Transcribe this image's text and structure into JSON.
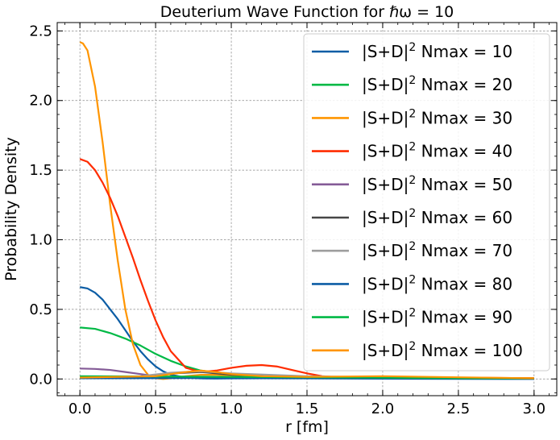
{
  "chart_data": {
    "type": "line",
    "title": "Deuterium Wave Function for ℏω = 10",
    "xlabel": "r [fm]",
    "ylabel": "Probability Density",
    "xlim": [
      -0.15,
      3.15
    ],
    "ylim": [
      -0.12,
      2.56
    ],
    "xticks": [
      0.0,
      0.5,
      1.0,
      1.5,
      2.0,
      2.5,
      3.0
    ],
    "xtick_labels": [
      "0.0",
      "0.5",
      "1.0",
      "1.5",
      "2.0",
      "2.5",
      "3.0"
    ],
    "yticks": [
      0.0,
      0.5,
      1.0,
      1.5,
      2.0,
      2.5
    ],
    "ytick_labels": [
      "0.0",
      "0.5",
      "1.0",
      "1.5",
      "2.0",
      "2.5"
    ],
    "grid": true,
    "legend_position": "top-right",
    "series": [
      {
        "name": "|S+D|² Nmax = 10",
        "legend_base": "|S+D|",
        "legend_sup": "2",
        "legend_rest": " Nmax = 10",
        "color": "#0C5DA5",
        "x": [
          0.0,
          0.05,
          0.1,
          0.15,
          0.2,
          0.25,
          0.3,
          0.35,
          0.4,
          0.45,
          0.5,
          0.55,
          0.6,
          0.7,
          0.8,
          0.9,
          1.0,
          1.2,
          1.5,
          2.0,
          2.5,
          3.0
        ],
        "y": [
          0.66,
          0.65,
          0.62,
          0.57,
          0.5,
          0.43,
          0.35,
          0.27,
          0.2,
          0.14,
          0.09,
          0.055,
          0.03,
          0.01,
          0.004,
          0.003,
          0.004,
          0.005,
          0.004,
          0.002,
          0.001,
          0.0
        ]
      },
      {
        "name": "|S+D|² Nmax = 20",
        "legend_base": "|S+D|",
        "legend_sup": "2",
        "legend_rest": " Nmax = 20",
        "color": "#00B945",
        "x": [
          0.0,
          0.1,
          0.2,
          0.3,
          0.4,
          0.5,
          0.6,
          0.7,
          0.8,
          0.9,
          1.0,
          1.2,
          1.4,
          1.6,
          1.8,
          2.0,
          2.5,
          3.0
        ],
        "y": [
          0.37,
          0.36,
          0.33,
          0.29,
          0.24,
          0.18,
          0.13,
          0.09,
          0.06,
          0.045,
          0.035,
          0.025,
          0.02,
          0.016,
          0.013,
          0.01,
          0.006,
          0.004
        ]
      },
      {
        "name": "|S+D|² Nmax = 30",
        "legend_base": "|S+D|",
        "legend_sup": "2",
        "legend_rest": " Nmax = 30",
        "color": "#FF9500",
        "x": [
          0.0,
          0.02,
          0.05,
          0.1,
          0.15,
          0.2,
          0.25,
          0.3,
          0.35,
          0.4,
          0.45,
          0.5,
          0.55,
          0.6,
          0.7,
          0.8,
          0.9,
          1.0,
          1.2,
          1.5,
          2.0,
          2.5,
          3.0
        ],
        "y": [
          2.42,
          2.41,
          2.36,
          2.1,
          1.7,
          1.25,
          0.85,
          0.5,
          0.25,
          0.1,
          0.03,
          0.005,
          0.0,
          0.005,
          0.02,
          0.03,
          0.03,
          0.025,
          0.015,
          0.01,
          0.01,
          0.005,
          0.005
        ]
      },
      {
        "name": "|S+D|² Nmax = 40",
        "legend_base": "|S+D|",
        "legend_sup": "2",
        "legend_rest": " Nmax = 40",
        "color": "#FF2C00",
        "x": [
          0.0,
          0.05,
          0.1,
          0.15,
          0.2,
          0.25,
          0.3,
          0.35,
          0.4,
          0.45,
          0.5,
          0.55,
          0.6,
          0.7,
          0.8,
          0.9,
          1.0,
          1.1,
          1.2,
          1.3,
          1.4,
          1.5,
          1.6,
          1.8,
          2.0,
          2.5,
          3.0
        ],
        "y": [
          1.58,
          1.56,
          1.5,
          1.41,
          1.3,
          1.17,
          1.02,
          0.87,
          0.71,
          0.56,
          0.42,
          0.3,
          0.2,
          0.08,
          0.05,
          0.06,
          0.08,
          0.095,
          0.1,
          0.09,
          0.065,
          0.04,
          0.02,
          0.005,
          0.005,
          0.01,
          0.005
        ]
      },
      {
        "name": "|S+D|² Nmax = 50",
        "legend_base": "|S+D|",
        "legend_sup": "2",
        "legend_rest": " Nmax = 50",
        "color": "#845B97",
        "x": [
          0.0,
          0.1,
          0.2,
          0.3,
          0.4,
          0.5,
          0.6,
          0.8,
          1.0,
          1.5,
          2.0,
          2.5,
          3.0
        ],
        "y": [
          0.075,
          0.072,
          0.065,
          0.05,
          0.035,
          0.02,
          0.012,
          0.01,
          0.012,
          0.01,
          0.006,
          0.004,
          0.002
        ]
      },
      {
        "name": "|S+D|² Nmax = 60",
        "legend_base": "|S+D|",
        "legend_sup": "2",
        "legend_rest": " Nmax = 60",
        "color": "#474747",
        "x": [
          0.0,
          0.2,
          0.4,
          0.6,
          0.8,
          1.0,
          1.5,
          2.0,
          2.5,
          3.0
        ],
        "y": [
          0.01,
          0.01,
          0.015,
          0.04,
          0.05,
          0.03,
          0.015,
          0.01,
          0.005,
          0.003
        ]
      },
      {
        "name": "|S+D|² Nmax = 70",
        "legend_base": "|S+D|",
        "legend_sup": "2",
        "legend_rest": " Nmax = 70",
        "color": "#9E9E9E",
        "x": [
          0.0,
          0.2,
          0.4,
          0.6,
          0.8,
          1.0,
          1.5,
          2.0,
          2.5,
          3.0
        ],
        "y": [
          0.01,
          0.012,
          0.02,
          0.045,
          0.055,
          0.04,
          0.02,
          0.012,
          0.006,
          0.003
        ]
      },
      {
        "name": "|S+D|² Nmax = 80",
        "legend_base": "|S+D|",
        "legend_sup": "2",
        "legend_rest": " Nmax = 80",
        "color": "#0C5DA5",
        "x": [
          0.0,
          0.5,
          1.0,
          1.5,
          2.0,
          2.5,
          3.0
        ],
        "y": [
          0.005,
          0.006,
          0.008,
          0.006,
          0.004,
          0.003,
          0.002
        ]
      },
      {
        "name": "|S+D|² Nmax = 90",
        "legend_base": "|S+D|",
        "legend_sup": "2",
        "legend_rest": " Nmax = 90",
        "color": "#00B945",
        "x": [
          0.0,
          0.5,
          1.0,
          1.5,
          2.0,
          2.5,
          3.0
        ],
        "y": [
          0.02,
          0.018,
          0.015,
          0.012,
          0.009,
          0.006,
          0.004
        ]
      },
      {
        "name": "|S+D|² Nmax = 100",
        "legend_base": "|S+D|",
        "legend_sup": "2",
        "legend_rest": " Nmax = 100",
        "color": "#FF9500",
        "x": [
          0.0,
          0.5,
          0.7,
          0.8,
          0.9,
          1.0,
          1.2,
          1.5,
          2.0,
          2.5,
          3.0
        ],
        "y": [
          0.01,
          0.02,
          0.05,
          0.06,
          0.05,
          0.035,
          0.02,
          0.015,
          0.02,
          0.012,
          0.005
        ]
      }
    ]
  }
}
